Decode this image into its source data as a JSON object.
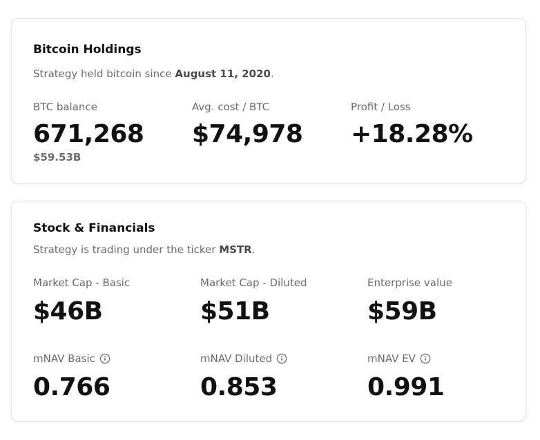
{
  "holdings": {
    "title": "Bitcoin Holdings",
    "subtitle_prefix": "Strategy held bitcoin since ",
    "subtitle_date": "August 11, 2020",
    "subtitle_suffix": ".",
    "btc_balance": {
      "label": "BTC balance",
      "value": "671,268",
      "sub": "$59.53B"
    },
    "avg_cost": {
      "label": "Avg. cost / BTC",
      "value": "$74,978"
    },
    "profit_loss": {
      "label": "Profit / Loss",
      "value": "+18.28%"
    }
  },
  "stock": {
    "title": "Stock & Financials",
    "subtitle_prefix": "Strategy is trading under the ticker ",
    "subtitle_ticker": "MSTR",
    "subtitle_suffix": ".",
    "market_cap_basic": {
      "label": "Market Cap - Basic",
      "value": "$46B"
    },
    "market_cap_diluted": {
      "label": "Market Cap - Diluted",
      "value": "$51B"
    },
    "enterprise_value": {
      "label": "Enterprise value",
      "value": "$59B"
    },
    "mnav_basic": {
      "label": "mNAV Basic",
      "value": "0.766",
      "icon": "info-icon"
    },
    "mnav_diluted": {
      "label": "mNAV Diluted",
      "value": "0.853",
      "icon": "info-icon"
    },
    "mnav_ev": {
      "label": "mNAV EV",
      "value": "0.991",
      "icon": "info-icon"
    }
  },
  "colors": {
    "text_primary": "#111111",
    "text_secondary": "#6b6b6b",
    "card_border": "#e2e2e2"
  }
}
